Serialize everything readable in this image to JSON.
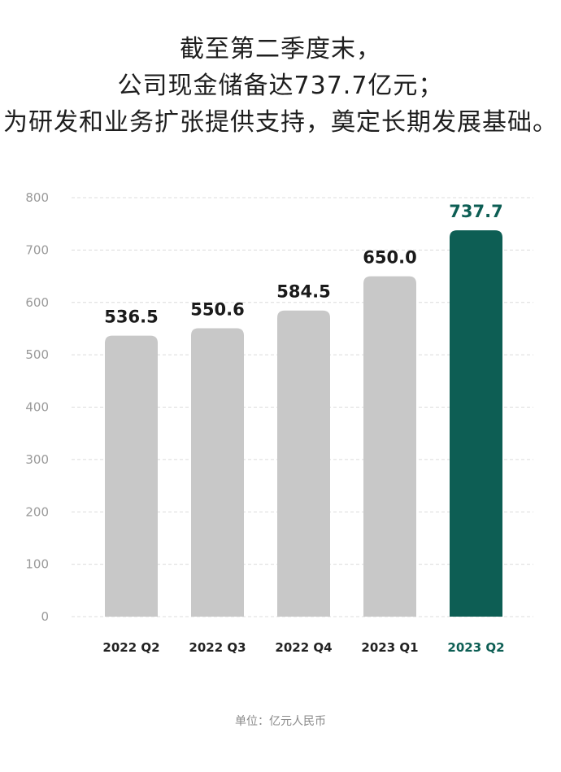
{
  "headline": {
    "line1": "截至第二季度末，",
    "line2": "公司现金储备达737.7亿元；",
    "line3": "为研发和业务扩张提供支持，奠定长期发展基础。"
  },
  "chart_data": {
    "type": "bar",
    "categories": [
      "2022 Q2",
      "2022 Q3",
      "2022 Q4",
      "2023 Q1",
      "2023 Q2"
    ],
    "values": [
      536.5,
      550.6,
      584.5,
      650.0,
      737.7
    ],
    "value_labels": [
      "536.5",
      "550.6",
      "584.5",
      "650.0",
      "737.7"
    ],
    "highlight_index": 4,
    "ylim": [
      0,
      800
    ],
    "yticks": [
      0,
      100,
      200,
      300,
      400,
      500,
      600,
      700,
      800
    ],
    "grid": true,
    "colors": {
      "default": "#c8c8c8",
      "highlight": "#0d5e54",
      "label": "#1a1a1a"
    }
  },
  "footer": {
    "unit": "单位：亿元人民币"
  }
}
